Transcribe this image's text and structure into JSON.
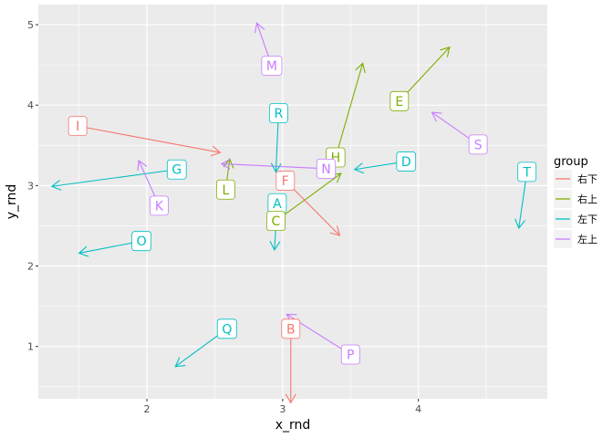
{
  "chart_data": {
    "type": "scatter",
    "xlabel": "x_rnd",
    "ylabel": "y_rnd",
    "xlim": [
      1.2,
      4.95
    ],
    "ylim": [
      0.35,
      5.25
    ],
    "x_breaks": [
      2,
      3,
      4
    ],
    "y_breaks": [
      1,
      2,
      3,
      4,
      5
    ],
    "x_tick_labels": [
      "2",
      "3",
      "4"
    ],
    "y_tick_labels": [
      "1",
      "2",
      "3",
      "4",
      "5"
    ],
    "grid": true,
    "legend_position": "right",
    "legend": {
      "title": "group",
      "entries": [
        {
          "key": "右下",
          "label": "右下",
          "color": "#F8766D"
        },
        {
          "key": "右上",
          "label": "右上",
          "color": "#7CAE00"
        },
        {
          "key": "左下",
          "label": "左下",
          "color": "#00BFC4"
        },
        {
          "key": "左上",
          "label": "左上",
          "color": "#C77CFF"
        }
      ]
    },
    "points": [
      {
        "label": "A",
        "group": "左下",
        "x": 2.96,
        "y": 2.78,
        "xend": 2.94,
        "yend": 2.2
      },
      {
        "label": "B",
        "group": "右下",
        "x": 3.06,
        "y": 1.22,
        "xend": 3.06,
        "yend": 0.3
      },
      {
        "label": "C",
        "group": "右上",
        "x": 2.95,
        "y": 2.56,
        "xend": 3.43,
        "yend": 3.15
      },
      {
        "label": "D",
        "group": "左下",
        "x": 3.91,
        "y": 3.3,
        "xend": 3.53,
        "yend": 3.2
      },
      {
        "label": "E",
        "group": "右上",
        "x": 3.86,
        "y": 4.05,
        "xend": 4.23,
        "yend": 4.72
      },
      {
        "label": "F",
        "group": "右下",
        "x": 3.02,
        "y": 3.06,
        "xend": 3.42,
        "yend": 2.38
      },
      {
        "label": "G",
        "group": "左下",
        "x": 2.22,
        "y": 3.2,
        "xend": 1.3,
        "yend": 2.99
      },
      {
        "label": "H",
        "group": "右上",
        "x": 3.39,
        "y": 3.35,
        "xend": 3.59,
        "yend": 4.52
      },
      {
        "label": "I",
        "group": "右下",
        "x": 1.49,
        "y": 3.74,
        "xend": 2.54,
        "yend": 3.41
      },
      {
        "label": "K",
        "group": "左上",
        "x": 2.09,
        "y": 2.75,
        "xend": 1.94,
        "yend": 3.31
      },
      {
        "label": "L",
        "group": "右上",
        "x": 2.58,
        "y": 2.95,
        "xend": 2.61,
        "yend": 3.33
      },
      {
        "label": "M",
        "group": "左上",
        "x": 2.92,
        "y": 4.49,
        "xend": 2.81,
        "yend": 5.02
      },
      {
        "label": "N",
        "group": "左上",
        "x": 3.32,
        "y": 3.21,
        "xend": 2.55,
        "yend": 3.27
      },
      {
        "label": "O",
        "group": "左下",
        "x": 1.96,
        "y": 2.31,
        "xend": 1.5,
        "yend": 2.16
      },
      {
        "label": "P",
        "group": "左上",
        "x": 3.5,
        "y": 0.9,
        "xend": 3.03,
        "yend": 1.4
      },
      {
        "label": "Q",
        "group": "左下",
        "x": 2.59,
        "y": 1.22,
        "xend": 2.21,
        "yend": 0.75
      },
      {
        "label": "R",
        "group": "左下",
        "x": 2.97,
        "y": 3.9,
        "xend": 2.95,
        "yend": 3.17
      },
      {
        "label": "S",
        "group": "左上",
        "x": 4.44,
        "y": 3.51,
        "xend": 4.1,
        "yend": 3.91
      },
      {
        "label": "T",
        "group": "左下",
        "x": 4.8,
        "y": 3.17,
        "xend": 4.74,
        "yend": 2.47
      }
    ]
  }
}
